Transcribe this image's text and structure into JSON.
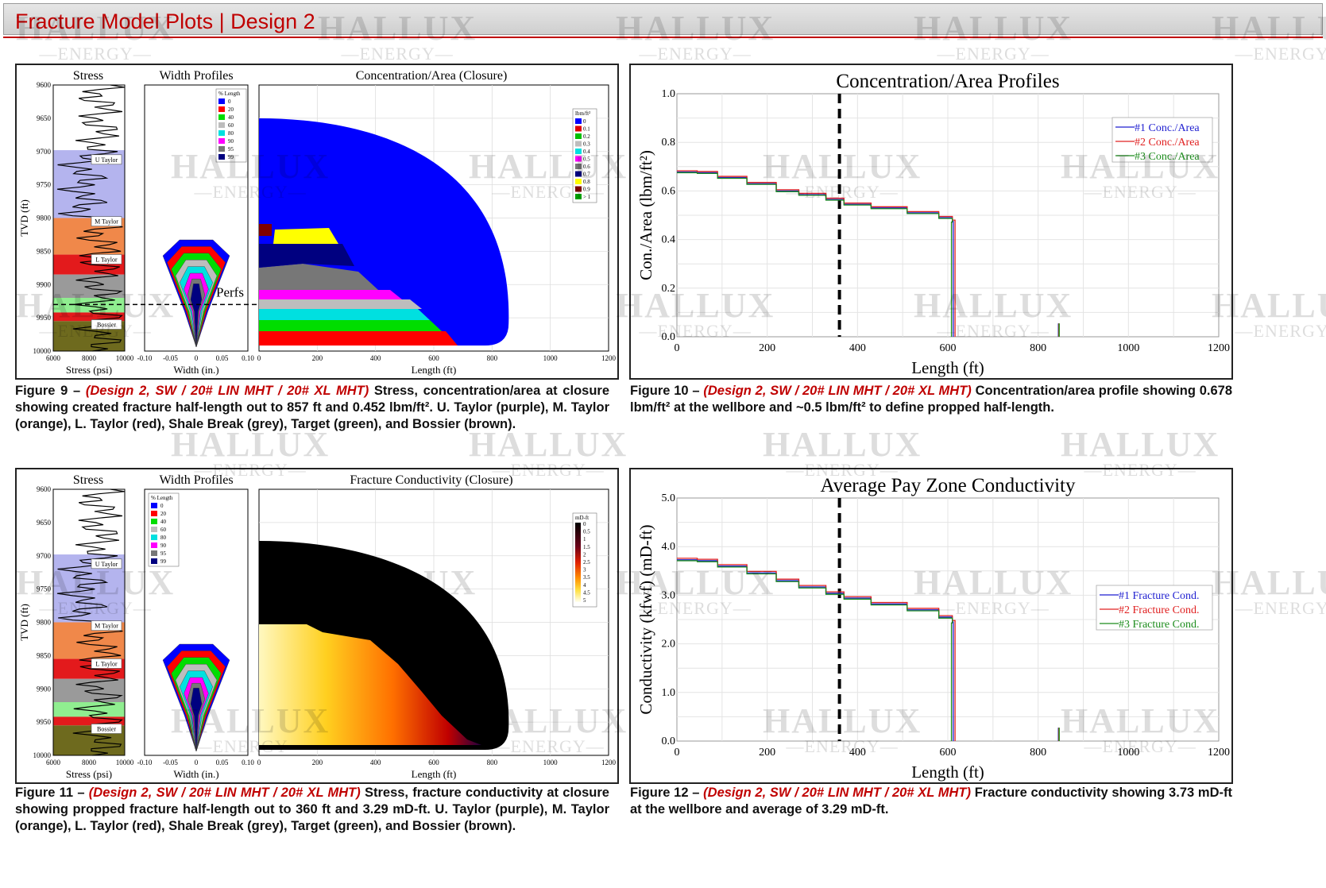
{
  "header": {
    "title": "Fracture Model Plots | Design 2"
  },
  "watermark": {
    "line1": "HALLUX",
    "line2": "ENERGY"
  },
  "colors": {
    "accent": "#c00000",
    "utaylor": "#b4b4ee",
    "mtaylor": "#f0884a",
    "ltaylor": "#e31a1c",
    "target": "#90ee90",
    "bossier": "#6e6a1e",
    "series1": "#1f1fd0",
    "series2": "#e02020",
    "series3": "#1c8c1c"
  },
  "fig9": {
    "titles": {
      "stress": "Stress",
      "width": "Width Profiles",
      "main": "Concentration/Area (Closure)"
    },
    "ylabel": "TVD (ft)",
    "depth_ticks": [
      "9600",
      "9650",
      "9700",
      "9750",
      "9800",
      "9850",
      "9900",
      "9950",
      "10000"
    ],
    "stress_ticks": [
      "6000",
      "8000",
      "10000"
    ],
    "stress_xlabel": "Stress (psi)",
    "width_ticks": [
      "-0.10",
      "-0.05",
      "0",
      "0.05",
      "0.10"
    ],
    "width_xlabel": "Width (in.)",
    "length_ticks": [
      "0",
      "200",
      "400",
      "600",
      "800",
      "1000",
      "1200"
    ],
    "length_xlabel": "Length (ft)",
    "zones": [
      "U Taylor",
      "M Taylor",
      "L Taylor",
      "Bossier"
    ],
    "perfs": "Perfs",
    "pct_title": "% Length",
    "pct_items": [
      "0",
      "20",
      "40",
      "60",
      "80",
      "90",
      "95",
      "99"
    ],
    "scale_title": "lbm/ft²",
    "scale_items": [
      "0",
      "0.1",
      "0.2",
      "0.3",
      "0.4",
      "0.5",
      "0.6",
      "0.7",
      "0.8",
      "0.9",
      "> 1"
    ],
    "caption": {
      "lead": "Figure 9 – ",
      "design": "(Design 2, SW / 20# LIN MHT / 20# XL MHT)",
      "body": " Stress, concentration/area at closure showing created fracture half-length out to 857 ft and 0.452 lbm/ft². U. Taylor (purple), M. Taylor (orange), L. Taylor (red), Shale Break (grey), Target (green), and Bossier (brown)."
    }
  },
  "fig11": {
    "titles": {
      "stress": "Stress",
      "width": "Width Profiles",
      "main": "Fracture Conductivity (Closure)"
    },
    "ylabel": "TVD (ft)",
    "depth_ticks": [
      "9600",
      "9650",
      "9700",
      "9750",
      "9800",
      "9850",
      "9900",
      "9950",
      "10000"
    ],
    "stress_ticks": [
      "6000",
      "8000",
      "10000"
    ],
    "stress_xlabel": "Stress (psi)",
    "width_ticks": [
      "-0.10",
      "-0.05",
      "0",
      "0.05",
      "0.10"
    ],
    "width_xlabel": "Width (in.)",
    "length_ticks": [
      "0",
      "200",
      "400",
      "600",
      "800",
      "1000",
      "1200"
    ],
    "length_xlabel": "Length (ft)",
    "zones": [
      "U Taylor",
      "M Taylor",
      "L Taylor",
      "Bossier"
    ],
    "pct_title": "% Length",
    "pct_items": [
      "0",
      "20",
      "40",
      "60",
      "80",
      "90",
      "95",
      "99"
    ],
    "scale_title": "mD-ft",
    "scale_items": [
      "0",
      "0.5",
      "1",
      "1.5",
      "2",
      "2.5",
      "3",
      "3.5",
      "4",
      "4.5",
      "5"
    ],
    "caption": {
      "lead": "Figure 11 – ",
      "design": "(Design 2, SW / 20# LIN MHT / 20# XL MHT)",
      "body": " Stress, fracture conductivity at closure showing propped fracture half-length out to 360 ft and 3.29 mD-ft. U. Taylor (purple), M. Taylor (orange), L. Taylor (red), Shale Break (grey), Target (green), and Bossier (brown)."
    }
  },
  "fig10": {
    "caption": {
      "lead": "Figure 10 – ",
      "design": "(Design 2, SW / 20# LIN MHT / 20# XL MHT)",
      "body": " Concentration/area profile showing 0.678 lbm/ft² at the wellbore and ~0.5 lbm/ft² to define propped half-length."
    }
  },
  "fig12": {
    "caption": {
      "lead": "Figure 12 – ",
      "design": "(Design 2, SW / 20# LIN MHT / 20# XL MHT)",
      "body": " Fracture conductivity showing 3.73 mD-ft at the wellbore and average of 3.29 mD-ft."
    }
  },
  "chart_data": [
    {
      "type": "line",
      "title": "Concentration/Area Profiles",
      "xlabel": "Length (ft)",
      "ylabel": "Con./Area (lbm/ft²)",
      "xlim": [
        0,
        1200
      ],
      "ylim": [
        0,
        1.0
      ],
      "xticks": [
        "0",
        "200",
        "400",
        "600",
        "800",
        "1000",
        "1200"
      ],
      "yticks": [
        "0.0",
        "0.2",
        "0.4",
        "0.6",
        "0.8",
        "1.0"
      ],
      "grid": true,
      "legend_position": "top-right",
      "marker_line_x": 360,
      "series": [
        {
          "name": "#1 Conc./Area",
          "x": [
            0,
            45,
            90,
            155,
            220,
            270,
            330,
            370,
            430,
            510,
            580,
            610,
            612,
            612
          ],
          "y": [
            0.678,
            0.675,
            0.655,
            0.63,
            0.6,
            0.585,
            0.565,
            0.545,
            0.53,
            0.51,
            0.49,
            0.475,
            0.475,
            0.0
          ]
        },
        {
          "name": "#2 Conc./Area",
          "x": [
            0,
            45,
            90,
            155,
            220,
            270,
            330,
            370,
            430,
            510,
            580,
            610,
            616,
            616
          ],
          "y": [
            0.683,
            0.68,
            0.66,
            0.635,
            0.605,
            0.59,
            0.57,
            0.55,
            0.535,
            0.515,
            0.495,
            0.48,
            0.48,
            0.0
          ]
        },
        {
          "name": "#3 Conc./Area",
          "x": [
            0,
            45,
            90,
            155,
            220,
            270,
            330,
            370,
            430,
            510,
            580,
            610,
            608,
            608
          ],
          "y": [
            0.675,
            0.672,
            0.652,
            0.627,
            0.597,
            0.582,
            0.562,
            0.542,
            0.527,
            0.507,
            0.487,
            0.472,
            0.472,
            0.0
          ]
        }
      ],
      "spike_x": 845
    },
    {
      "type": "line",
      "title": "Average Pay Zone Conductivity",
      "xlabel": "Length (ft)",
      "ylabel": "Conductivity (kfwf) (mD-ft)",
      "xlim": [
        0,
        1200
      ],
      "ylim": [
        0,
        5.0
      ],
      "xticks": [
        "0",
        "200",
        "400",
        "600",
        "800",
        "1000",
        "1200"
      ],
      "yticks": [
        "0.0",
        "1.0",
        "2.0",
        "3.0",
        "4.0",
        "5.0"
      ],
      "grid": true,
      "legend_position": "right",
      "marker_line_x": 360,
      "series": [
        {
          "name": "#1 Fracture Cond.",
          "x": [
            0,
            45,
            90,
            155,
            220,
            270,
            330,
            370,
            430,
            510,
            580,
            610,
            612,
            612
          ],
          "y": [
            3.73,
            3.71,
            3.6,
            3.46,
            3.3,
            3.17,
            3.04,
            2.94,
            2.82,
            2.7,
            2.55,
            2.45,
            2.45,
            0.0
          ]
        },
        {
          "name": "#2 Fracture Cond.",
          "x": [
            0,
            45,
            90,
            155,
            220,
            270,
            330,
            370,
            430,
            510,
            580,
            610,
            616,
            616
          ],
          "y": [
            3.76,
            3.74,
            3.63,
            3.49,
            3.33,
            3.2,
            3.07,
            2.97,
            2.85,
            2.73,
            2.58,
            2.48,
            2.48,
            0.0
          ]
        },
        {
          "name": "#3 Fracture Cond.",
          "x": [
            0,
            45,
            90,
            155,
            220,
            270,
            330,
            370,
            430,
            510,
            580,
            610,
            608,
            608
          ],
          "y": [
            3.71,
            3.69,
            3.58,
            3.44,
            3.28,
            3.15,
            3.02,
            2.92,
            2.8,
            2.68,
            2.53,
            2.43,
            2.43,
            0.0
          ]
        }
      ],
      "spike_x": 845
    }
  ]
}
